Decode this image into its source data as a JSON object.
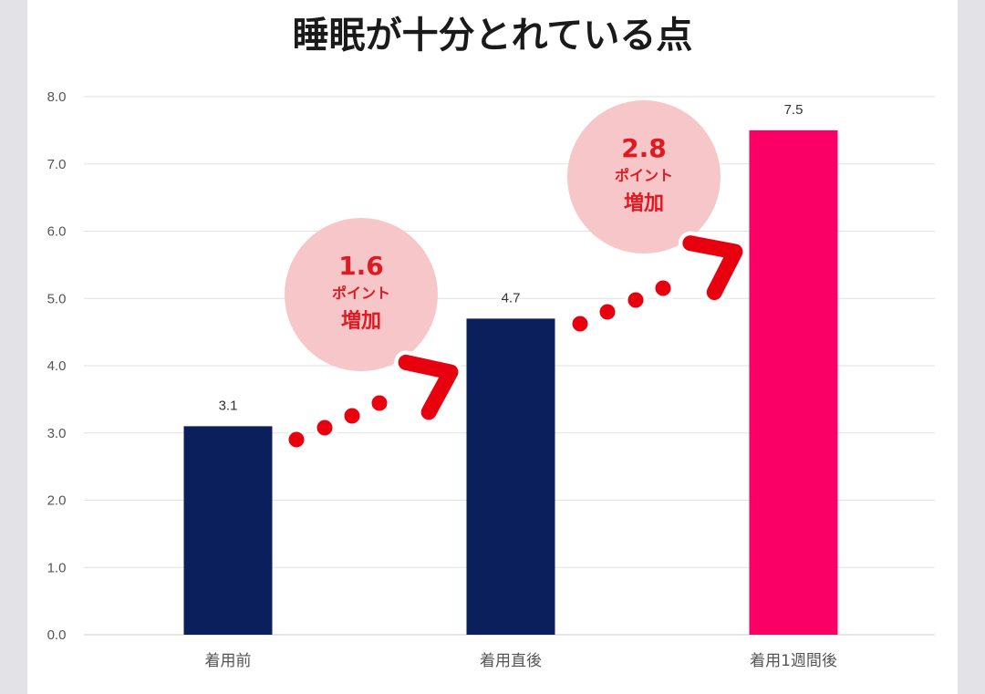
{
  "chart_data": {
    "type": "bar",
    "title": "睡眠が十分とれている点",
    "categories": [
      "着用前",
      "着用直後",
      "着用1週間後"
    ],
    "values": [
      3.1,
      4.7,
      7.5
    ],
    "value_labels": [
      "3.1",
      "4.7",
      "7.5"
    ],
    "bar_colors": [
      "#0b1f5c",
      "#0b1f5c",
      "#fa0066"
    ],
    "ylim": [
      0,
      8
    ],
    "yticks": [
      "0.0",
      "1.0",
      "2.0",
      "3.0",
      "4.0",
      "5.0",
      "6.0",
      "7.0",
      "8.0"
    ],
    "grid": true,
    "annotations": [
      {
        "number": "1.6",
        "line1": "ポイント",
        "line2": "増加",
        "from": 0,
        "to": 1
      },
      {
        "number": "2.8",
        "line1": "ポイント",
        "line2": "増加",
        "from": 1,
        "to": 2
      }
    ],
    "colors": {
      "arrow": "#e8000f",
      "bubble": "#f6c6c8",
      "grid": "#e2e2e2",
      "annotation_text": "#e01a23"
    }
  }
}
